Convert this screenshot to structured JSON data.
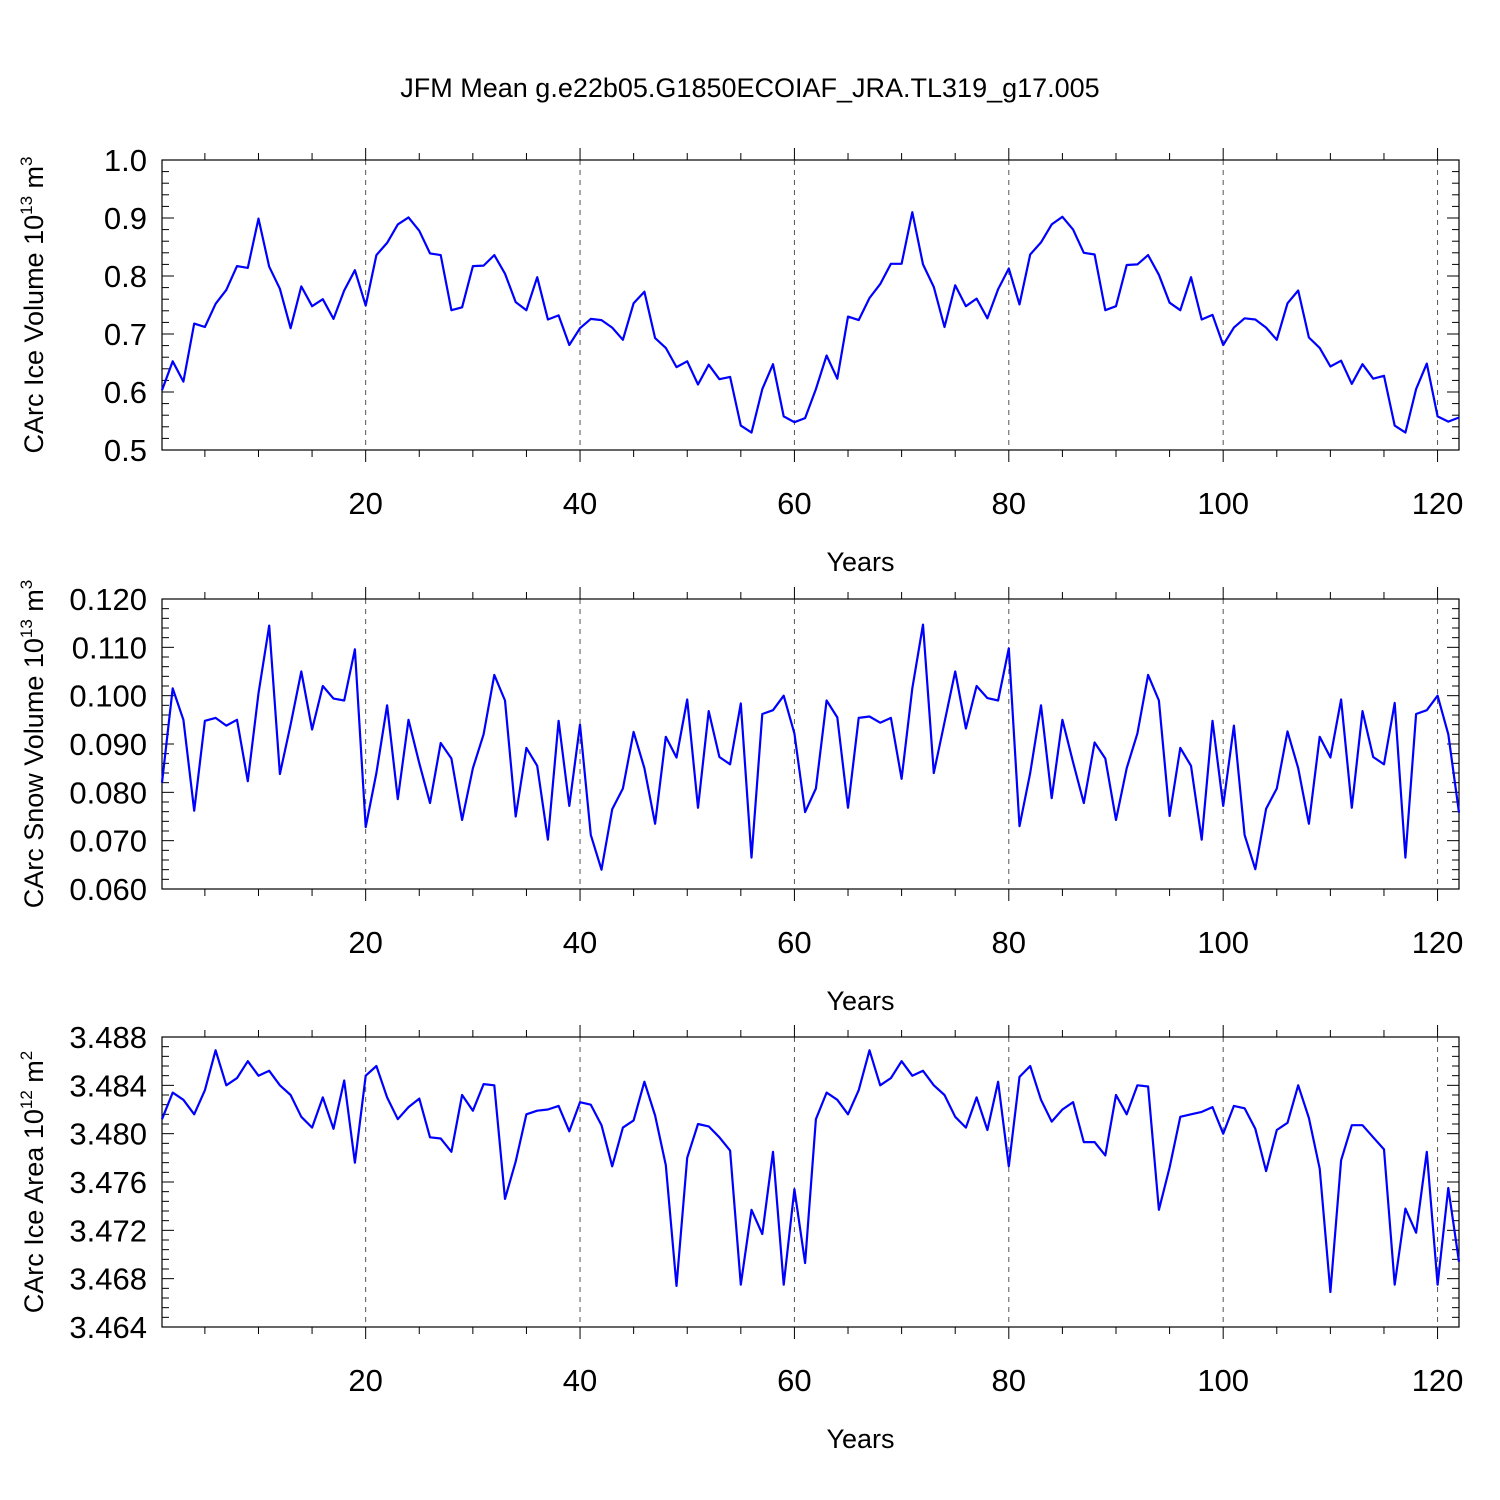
{
  "title": "JFM Mean g.e22b05.G1850ECOIAF_JRA.TL319_g17.005",
  "chart_data": [
    {
      "type": "line",
      "xlabel": "Years",
      "ylabel": "CArc Ice Volume 10",
      "ylabel_sup1": "13",
      "ylabel_unit": " m",
      "ylabel_sup2": "3",
      "xlim": [
        1,
        122
      ],
      "ylim": [
        0.5,
        1.0
      ],
      "yticks": [
        "0.5",
        "0.6",
        "0.7",
        "0.8",
        "0.9",
        "1.0"
      ],
      "xticks": [
        "20",
        "40",
        "60",
        "80",
        "100",
        "120"
      ],
      "line_color": "#0000ff",
      "values": [
        0.603,
        0.653,
        0.618,
        0.718,
        0.712,
        0.752,
        0.776,
        0.817,
        0.814,
        0.899,
        0.816,
        0.778,
        0.71,
        0.782,
        0.748,
        0.76,
        0.726,
        0.775,
        0.81,
        0.749,
        0.836,
        0.857,
        0.889,
        0.901,
        0.878,
        0.839,
        0.836,
        0.741,
        0.746,
        0.817,
        0.818,
        0.836,
        0.804,
        0.755,
        0.741,
        0.798,
        0.725,
        0.732,
        0.681,
        0.71,
        0.726,
        0.724,
        0.711,
        0.69,
        0.753,
        0.773,
        0.693,
        0.676,
        0.643,
        0.653,
        0.613,
        0.647,
        0.622,
        0.626,
        0.542,
        0.53,
        0.605,
        0.648,
        0.558,
        0.548,
        0.555,
        0.605,
        0.663,
        0.623,
        0.73,
        0.724,
        0.762,
        0.786,
        0.821,
        0.821,
        0.91,
        0.82,
        0.781,
        0.712,
        0.784,
        0.748,
        0.761,
        0.727,
        0.777,
        0.813,
        0.751,
        0.837,
        0.858,
        0.889,
        0.902,
        0.88,
        0.84,
        0.837,
        0.741,
        0.748,
        0.819,
        0.82,
        0.836,
        0.802,
        0.754,
        0.741,
        0.798,
        0.725,
        0.733,
        0.681,
        0.711,
        0.727,
        0.725,
        0.711,
        0.69,
        0.753,
        0.775,
        0.694,
        0.676,
        0.644,
        0.654,
        0.614,
        0.648,
        0.623,
        0.628,
        0.542,
        0.53,
        0.605,
        0.649,
        0.558,
        0.549,
        0.556
      ]
    },
    {
      "type": "line",
      "xlabel": "Years",
      "ylabel": "CArc Snow Volume 10",
      "ylabel_sup1": "13",
      "ylabel_unit": " m",
      "ylabel_sup2": "3",
      "xlim": [
        1,
        122
      ],
      "ylim": [
        0.06,
        0.12
      ],
      "yticks": [
        "0.060",
        "0.070",
        "0.080",
        "0.090",
        "0.100",
        "0.110",
        "0.120"
      ],
      "xticks": [
        "20",
        "40",
        "60",
        "80",
        "100",
        "120"
      ],
      "line_color": "#0000ff",
      "values": [
        0.082,
        0.1015,
        0.095,
        0.0762,
        0.0948,
        0.0954,
        0.0938,
        0.095,
        0.0823,
        0.1005,
        0.1145,
        0.0838,
        0.094,
        0.105,
        0.093,
        0.102,
        0.0994,
        0.099,
        0.1096,
        0.0728,
        0.084,
        0.098,
        0.0786,
        0.095,
        0.086,
        0.0778,
        0.0902,
        0.087,
        0.0743,
        0.085,
        0.092,
        0.1043,
        0.099,
        0.075,
        0.0892,
        0.0855,
        0.0702,
        0.0948,
        0.0772,
        0.094,
        0.0712,
        0.064,
        0.0765,
        0.0808,
        0.0925,
        0.085,
        0.0735,
        0.0915,
        0.0872,
        0.0992,
        0.0768,
        0.0968,
        0.0873,
        0.0858,
        0.0984,
        0.0665,
        0.0962,
        0.097,
        0.1,
        0.0922,
        0.0759,
        0.0808,
        0.099,
        0.0955,
        0.0768,
        0.0954,
        0.0957,
        0.0944,
        0.0954,
        0.0828,
        0.1015,
        0.1147,
        0.084,
        0.0945,
        0.105,
        0.0932,
        0.102,
        0.0995,
        0.099,
        0.1098,
        0.073,
        0.084,
        0.098,
        0.0788,
        0.095,
        0.0862,
        0.0778,
        0.0903,
        0.087,
        0.0743,
        0.085,
        0.0922,
        0.1043,
        0.099,
        0.0751,
        0.0892,
        0.0855,
        0.0702,
        0.0948,
        0.0772,
        0.0938,
        0.0712,
        0.0641,
        0.0766,
        0.0808,
        0.0926,
        0.085,
        0.0735,
        0.0915,
        0.0872,
        0.0992,
        0.0768,
        0.0968,
        0.0873,
        0.0858,
        0.0985,
        0.0665,
        0.0962,
        0.097,
        0.1,
        0.092,
        0.0758
      ]
    },
    {
      "type": "line",
      "xlabel": "Years",
      "ylabel": "CArc Ice Area 10",
      "ylabel_sup1": "12",
      "ylabel_unit": " m",
      "ylabel_sup2": "2",
      "xlim": [
        1,
        122
      ],
      "ylim": [
        3.464,
        3.488
      ],
      "yticks": [
        "3.464",
        "3.468",
        "3.472",
        "3.476",
        "3.480",
        "3.484",
        "3.488"
      ],
      "xticks": [
        "20",
        "40",
        "60",
        "80",
        "100",
        "120"
      ],
      "line_color": "#0000ff",
      "values": [
        3.4812,
        3.4834,
        3.4828,
        3.4816,
        3.4836,
        3.4869,
        3.484,
        3.4846,
        3.486,
        3.4848,
        3.4852,
        3.484,
        3.4832,
        3.4814,
        3.4805,
        3.483,
        3.4804,
        3.4844,
        3.4776,
        3.4848,
        3.4856,
        3.483,
        3.4812,
        3.4822,
        3.4829,
        3.4797,
        3.4796,
        3.4785,
        3.4832,
        3.4819,
        3.4841,
        3.484,
        3.4746,
        3.4777,
        3.4816,
        3.4819,
        3.482,
        3.4823,
        3.4802,
        3.4826,
        3.4824,
        3.4807,
        3.4773,
        3.4805,
        3.4811,
        3.4843,
        3.4815,
        3.4774,
        3.4674,
        3.478,
        3.4808,
        3.4806,
        3.4797,
        3.4786,
        3.4675,
        3.4737,
        3.4717,
        3.4785,
        3.4675,
        3.4754,
        3.4693,
        3.4812,
        3.4834,
        3.4828,
        3.4816,
        3.4836,
        3.4869,
        3.484,
        3.4846,
        3.486,
        3.4848,
        3.4852,
        3.484,
        3.4832,
        3.4814,
        3.4805,
        3.483,
        3.4803,
        3.4843,
        3.4773,
        3.4847,
        3.4856,
        3.4828,
        3.481,
        3.482,
        3.4826,
        3.4793,
        3.4793,
        3.4782,
        3.4832,
        3.4816,
        3.484,
        3.4839,
        3.4737,
        3.4772,
        3.4814,
        3.4816,
        3.4818,
        3.4822,
        3.48,
        3.4823,
        3.4821,
        3.4804,
        3.4769,
        3.4803,
        3.4809,
        3.484,
        3.4813,
        3.4771,
        3.4669,
        3.4778,
        3.4807,
        3.4807,
        3.4797,
        3.4787,
        3.4675,
        3.4738,
        3.4718,
        3.4785,
        3.4675,
        3.4755,
        3.4694
      ]
    }
  ]
}
